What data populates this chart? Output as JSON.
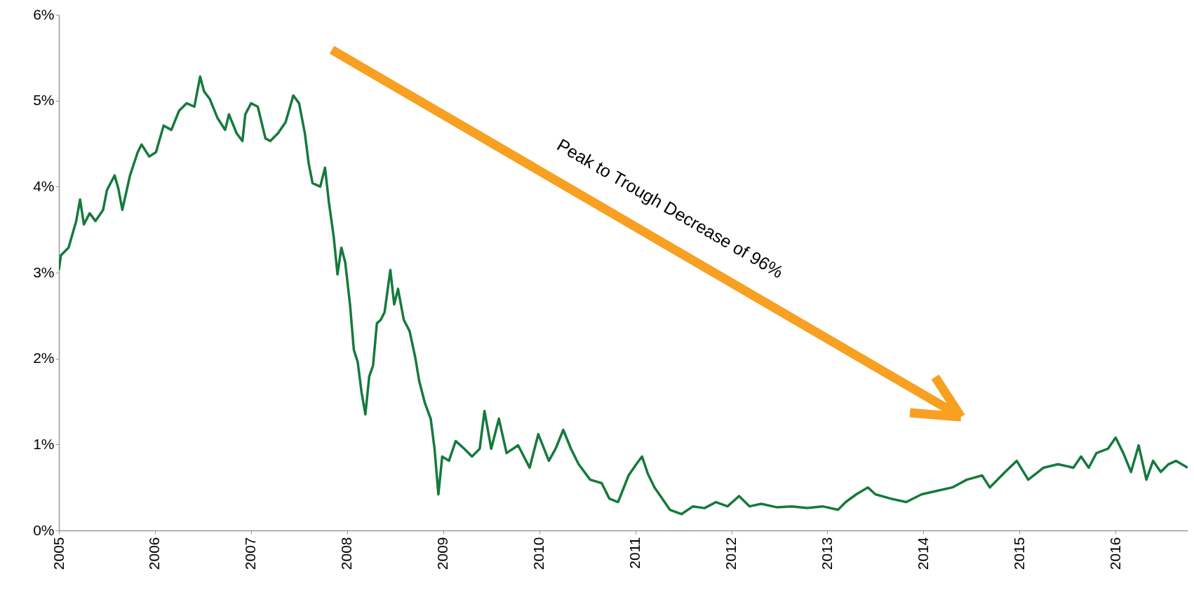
{
  "chart_data": {
    "type": "line",
    "annotations": [
      "Peak to Trough Decrease of 96%"
    ],
    "x": [
      2005.0,
      2005.02,
      2005.1,
      2005.18,
      2005.22,
      2005.26,
      2005.32,
      2005.38,
      2005.46,
      2005.5,
      2005.58,
      2005.62,
      2005.66,
      2005.74,
      2005.82,
      2005.86,
      2005.94,
      2006.01,
      2006.09,
      2006.17,
      2006.25,
      2006.33,
      2006.41,
      2006.47,
      2006.51,
      2006.57,
      2006.65,
      2006.73,
      2006.77,
      2006.85,
      2006.91,
      2006.94,
      2007.0,
      2007.07,
      2007.15,
      2007.2,
      2007.28,
      2007.36,
      2007.44,
      2007.5,
      2007.56,
      2007.6,
      2007.64,
      2007.72,
      2007.77,
      2007.81,
      2007.86,
      2007.9,
      2007.94,
      2007.98,
      2008.03,
      2008.07,
      2008.11,
      2008.15,
      2008.19,
      2008.23,
      2008.27,
      2008.31,
      2008.35,
      2008.39,
      2008.45,
      2008.49,
      2008.53,
      2008.59,
      2008.65,
      2008.71,
      2008.75,
      2008.81,
      2008.87,
      2008.91,
      2008.95,
      2008.99,
      2009.06,
      2009.13,
      2009.22,
      2009.3,
      2009.38,
      2009.43,
      2009.5,
      2009.58,
      2009.66,
      2009.78,
      2009.9,
      2009.99,
      2010.1,
      2010.17,
      2010.25,
      2010.33,
      2010.41,
      2010.53,
      2010.65,
      2010.73,
      2010.82,
      2010.93,
      2011.01,
      2011.07,
      2011.13,
      2011.2,
      2011.28,
      2011.36,
      2011.48,
      2011.6,
      2011.72,
      2011.84,
      2011.96,
      2012.08,
      2012.19,
      2012.31,
      2012.47,
      2012.63,
      2012.79,
      2012.95,
      2013.11,
      2013.19,
      2013.3,
      2013.42,
      2013.5,
      2013.66,
      2013.82,
      2013.98,
      2014.14,
      2014.3,
      2014.45,
      2014.61,
      2014.69,
      2014.85,
      2014.97,
      2015.09,
      2015.25,
      2015.4,
      2015.56,
      2015.64,
      2015.72,
      2015.8,
      2015.92,
      2016.0,
      2016.08,
      2016.16,
      2016.24,
      2016.32,
      2016.39,
      2016.47,
      2016.55,
      2016.63,
      2016.75
    ],
    "series": [
      {
        "color": "#157a3c",
        "values": [
          3.03,
          3.2,
          3.29,
          3.6,
          3.85,
          3.56,
          3.69,
          3.6,
          3.73,
          3.96,
          4.13,
          3.97,
          3.73,
          4.13,
          4.4,
          4.49,
          4.35,
          4.4,
          4.71,
          4.66,
          4.88,
          4.97,
          4.93,
          5.28,
          5.11,
          5.02,
          4.8,
          4.66,
          4.84,
          4.62,
          4.53,
          4.84,
          4.97,
          4.93,
          4.56,
          4.53,
          4.62,
          4.75,
          5.06,
          4.97,
          4.62,
          4.27,
          4.04,
          4.0,
          4.22,
          3.82,
          3.42,
          2.98,
          3.29,
          3.12,
          2.63,
          2.1,
          1.96,
          1.61,
          1.35,
          1.79,
          1.92,
          2.41,
          2.45,
          2.54,
          3.03,
          2.63,
          2.81,
          2.45,
          2.32,
          2.01,
          1.74,
          1.48,
          1.3,
          0.95,
          0.42,
          0.86,
          0.81,
          1.04,
          0.95,
          0.86,
          0.95,
          1.39,
          0.95,
          1.3,
          0.9,
          0.99,
          0.73,
          1.12,
          0.81,
          0.95,
          1.17,
          0.95,
          0.77,
          0.59,
          0.55,
          0.37,
          0.33,
          0.64,
          0.77,
          0.86,
          0.66,
          0.5,
          0.37,
          0.24,
          0.19,
          0.28,
          0.26,
          0.33,
          0.28,
          0.4,
          0.28,
          0.31,
          0.27,
          0.28,
          0.26,
          0.28,
          0.24,
          0.33,
          0.42,
          0.5,
          0.42,
          0.37,
          0.33,
          0.42,
          0.46,
          0.5,
          0.59,
          0.64,
          0.5,
          0.68,
          0.81,
          0.59,
          0.73,
          0.77,
          0.73,
          0.86,
          0.73,
          0.9,
          0.95,
          1.08,
          0.9,
          0.68,
          0.99,
          0.59,
          0.81,
          0.68,
          0.77,
          0.81,
          0.73
        ]
      }
    ],
    "xlim": [
      2005,
      2016.75
    ],
    "xticks": [
      2005,
      2006,
      2007,
      2008,
      2009,
      2010,
      2011,
      2012,
      2013,
      2014,
      2015,
      2016
    ],
    "ylim": [
      0,
      6
    ],
    "yticks": [
      {
        "value": 0,
        "label": "0%"
      },
      {
        "value": 1,
        "label": "1%"
      },
      {
        "value": 2,
        "label": "2%"
      },
      {
        "value": 3,
        "label": "3%"
      },
      {
        "value": 4,
        "label": "4%"
      },
      {
        "value": 5,
        "label": "5%"
      },
      {
        "value": 6,
        "label": "6%"
      }
    ],
    "grid": false,
    "legend": false,
    "marker": "none",
    "line_style": "solid"
  }
}
